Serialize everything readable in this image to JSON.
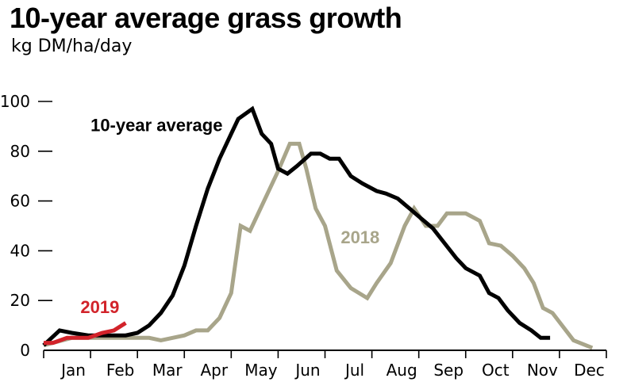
{
  "chart_data": {
    "type": "line",
    "title": "10-year average grass growth",
    "subtitle": "kg DM/ha/day",
    "months": [
      "Jan",
      "Feb",
      "Mar",
      "Apr",
      "May",
      "Jun",
      "Jul",
      "Aug",
      "Sep",
      "Oct",
      "Nov",
      "Dec"
    ],
    "x_range": [
      0,
      12
    ],
    "ylim": [
      0,
      100
    ],
    "yticks": [
      0,
      20,
      40,
      60,
      80,
      100
    ],
    "grid": false,
    "series": [
      {
        "name": "10-year average",
        "color": "#000000",
        "x": [
          0,
          0.34,
          0.6,
          0.95,
          1.3,
          1.75,
          2.0,
          2.25,
          2.5,
          2.75,
          3.0,
          3.25,
          3.5,
          3.75,
          4.0,
          4.15,
          4.45,
          4.65,
          4.85,
          5.0,
          5.2,
          5.4,
          5.7,
          5.9,
          6.1,
          6.3,
          6.55,
          6.8,
          7.1,
          7.3,
          7.55,
          7.8,
          8.05,
          8.3,
          8.55,
          8.8,
          9.0,
          9.3,
          9.5,
          9.7,
          9.9,
          10.15,
          10.4,
          10.6,
          10.8
        ],
        "y": [
          2,
          8,
          7,
          6,
          6,
          6,
          7,
          10,
          15,
          22,
          34,
          50,
          65,
          77,
          87,
          93,
          97,
          87,
          83,
          73,
          71,
          74,
          79,
          79,
          77,
          77,
          70,
          67,
          64,
          63,
          61,
          57,
          53,
          49,
          43,
          37,
          33,
          30,
          23,
          21,
          16,
          11,
          8,
          5,
          5
        ]
      },
      {
        "name": "2018",
        "color": "#a8a58a",
        "x": [
          0,
          0.6,
          1.0,
          1.75,
          2.0,
          2.25,
          2.5,
          2.75,
          3.0,
          3.25,
          3.5,
          3.75,
          4.0,
          4.2,
          4.4,
          4.7,
          5.0,
          5.25,
          5.45,
          5.6,
          5.8,
          6.0,
          6.25,
          6.55,
          6.9,
          7.1,
          7.4,
          7.7,
          7.9,
          8.15,
          8.4,
          8.6,
          8.8,
          9.0,
          9.3,
          9.5,
          9.75,
          10.0,
          10.25,
          10.45,
          10.65,
          10.85,
          11.3,
          11.7
        ],
        "y": [
          2,
          5,
          5,
          5,
          5,
          5,
          4,
          5,
          6,
          8,
          8,
          13,
          23,
          50,
          48,
          60,
          72,
          83,
          83,
          73,
          57,
          50,
          32,
          25,
          21,
          27,
          35,
          50,
          57,
          50,
          50,
          55,
          55,
          55,
          52,
          43,
          42,
          38,
          33,
          27,
          17,
          15,
          4,
          1
        ]
      },
      {
        "name": "2019",
        "color": "#d2232a",
        "x": [
          0,
          0.2,
          0.5,
          0.95,
          1.25,
          1.5,
          1.75
        ],
        "y": [
          3,
          3,
          5,
          5,
          7,
          8,
          11
        ]
      }
    ]
  }
}
